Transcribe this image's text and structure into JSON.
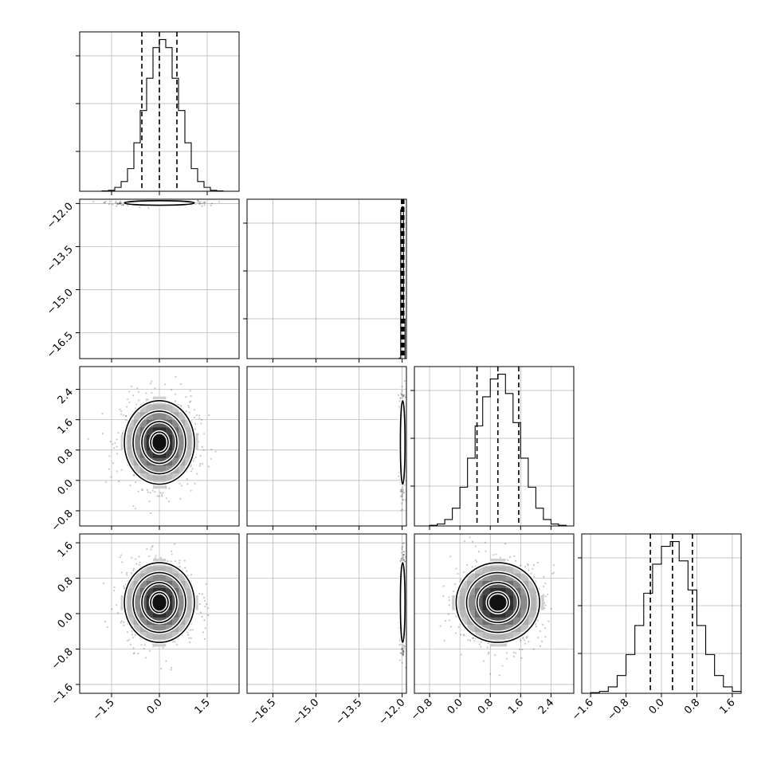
{
  "chart_data": {
    "type": "corner",
    "parameters": [
      {
        "id": "p0",
        "mean": 0.0,
        "sigma": 0.55,
        "range": [
          -2.5,
          2.5
        ],
        "ticks": [
          -1.5,
          0.0,
          1.5
        ],
        "tick_labels": [
          "−1.5",
          "0.0",
          "1.5"
        ],
        "quantiles": [
          -0.55,
          0.0,
          0.55
        ]
      },
      {
        "id": "p1",
        "mean": -11.98,
        "sigma": 0.04,
        "range": [
          -17.4,
          -11.85
        ],
        "ticks": [
          -16.5,
          -15.0,
          -13.5,
          -12.0
        ],
        "tick_labels": [
          "−16.5",
          "−15.0",
          "−13.5",
          "−12.0"
        ],
        "quantiles": [
          -12.02,
          -11.98,
          -11.94
        ]
      },
      {
        "id": "p2",
        "mean": 1.0,
        "sigma": 0.55,
        "range": [
          -1.2,
          3.0
        ],
        "ticks": [
          -0.8,
          0.0,
          0.8,
          1.6,
          2.4
        ],
        "tick_labels": [
          "−0.8",
          "0.0",
          "0.8",
          "1.6",
          "2.4"
        ],
        "quantiles": [
          0.45,
          1.0,
          1.55
        ]
      },
      {
        "id": "p3",
        "mean": 0.25,
        "sigma": 0.45,
        "range": [
          -1.8,
          1.8
        ],
        "ticks": [
          -1.6,
          -0.8,
          0.0,
          0.8,
          1.6
        ],
        "tick_labels": [
          "−1.6",
          "−0.8",
          "0.0",
          "0.8",
          "1.6"
        ],
        "quantiles": [
          -0.25,
          0.25,
          0.7
        ]
      }
    ],
    "histograms": [
      {
        "param": 0,
        "edges": [
          -1.8,
          -1.6,
          -1.4,
          -1.2,
          -1.0,
          -0.8,
          -0.6,
          -0.4,
          -0.2,
          0.0,
          0.2,
          0.4,
          0.6,
          0.8,
          1.0,
          1.2,
          1.4,
          1.6,
          1.8,
          2.0
        ],
        "counts": [
          1,
          3,
          12,
          30,
          70,
          150,
          250,
          350,
          445,
          470,
          445,
          350,
          250,
          150,
          70,
          30,
          12,
          3,
          1
        ]
      },
      {
        "param": 1,
        "edges": [
          -12.1,
          -12.05,
          -12.0,
          -11.95,
          -11.9
        ],
        "counts": [
          4,
          980,
          1000,
          260
        ]
      },
      {
        "param": 2,
        "edges": [
          -0.8,
          -0.6,
          -0.4,
          -0.2,
          0.0,
          0.2,
          0.4,
          0.6,
          0.8,
          1.0,
          1.2,
          1.4,
          1.6,
          1.8,
          2.0,
          2.2,
          2.4,
          2.6,
          2.8
        ],
        "counts": [
          2,
          6,
          20,
          55,
          120,
          210,
          310,
          400,
          455,
          470,
          410,
          320,
          210,
          120,
          55,
          20,
          6,
          2
        ]
      },
      {
        "param": 3,
        "edges": [
          -1.6,
          -1.4,
          -1.2,
          -1.0,
          -0.8,
          -0.6,
          -0.4,
          -0.2,
          0.0,
          0.2,
          0.4,
          0.6,
          0.8,
          1.0,
          1.2,
          1.4,
          1.6,
          1.8
        ],
        "counts": [
          2,
          6,
          20,
          55,
          120,
          210,
          310,
          400,
          455,
          470,
          410,
          320,
          210,
          120,
          55,
          20,
          6
        ]
      }
    ],
    "pairs": [
      {
        "row": 1,
        "col": 0
      },
      {
        "row": 2,
        "col": 0
      },
      {
        "row": 2,
        "col": 1
      },
      {
        "row": 3,
        "col": 0
      },
      {
        "row": 3,
        "col": 1
      },
      {
        "row": 3,
        "col": 2
      }
    ],
    "contour_levels_sigma": [
      0.5,
      1.0,
      1.5,
      2.0
    ],
    "grid": true
  }
}
